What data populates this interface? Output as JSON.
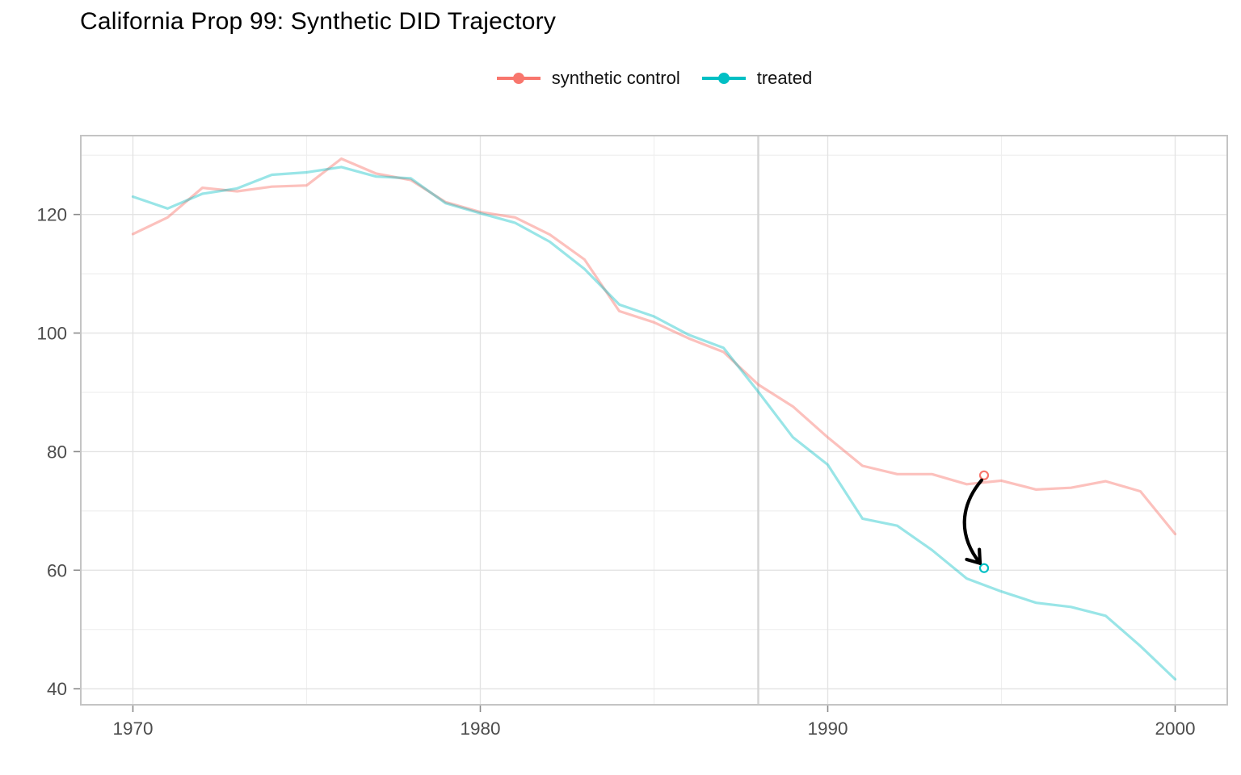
{
  "chart_data": {
    "type": "line",
    "title": "California Prop 99: Synthetic DID Trajectory",
    "xlabel": "",
    "ylabel": "",
    "legend_position": "top-center",
    "grid": true,
    "x": [
      1970,
      1971,
      1972,
      1973,
      1974,
      1975,
      1976,
      1977,
      1978,
      1979,
      1980,
      1981,
      1982,
      1983,
      1984,
      1985,
      1986,
      1987,
      1988,
      1989,
      1990,
      1991,
      1992,
      1993,
      1994,
      1995,
      1996,
      1997,
      1998,
      1999,
      2000
    ],
    "series": [
      {
        "name": "synthetic control",
        "values": [
          116.7,
          119.5,
          124.5,
          123.9,
          124.7,
          124.9,
          129.4,
          126.9,
          125.8,
          122.1,
          120.4,
          119.5,
          116.6,
          112.4,
          103.7,
          101.8,
          99.1,
          96.8,
          91.3,
          87.6,
          82.4,
          77.6,
          76.2,
          76.2,
          74.5,
          75.1,
          73.6,
          73.9,
          75.0,
          73.3,
          66.1
        ]
      },
      {
        "name": "treated",
        "values": [
          123.0,
          121.0,
          123.5,
          124.4,
          126.7,
          127.1,
          128.0,
          126.4,
          126.1,
          121.9,
          120.2,
          118.6,
          115.4,
          110.8,
          104.8,
          102.8,
          99.7,
          97.5,
          90.1,
          82.4,
          77.8,
          68.7,
          67.5,
          63.4,
          58.6,
          56.4,
          54.5,
          53.8,
          52.3,
          47.2,
          41.6
        ]
      }
    ],
    "x_ticks": [
      1970,
      1980,
      1990,
      2000
    ],
    "x_minor": [
      1975,
      1985,
      1995
    ],
    "y_ticks": [
      40,
      60,
      80,
      100,
      120
    ],
    "y_minor": [
      50,
      70,
      90,
      110,
      130
    ],
    "xlim": [
      1968.5,
      2001.5
    ],
    "ylim": [
      37.3,
      133.3
    ],
    "treatment_year": 1988,
    "effect_arrow": {
      "x": 1994.5,
      "from_value": 76.0,
      "to_value": 60.35
    },
    "colors": {
      "synthetic_control": "#F8766D",
      "treated": "#00BFC4",
      "synthetic_control_line": "rgba(248,118,109,0.45)",
      "treated_line": "rgba(0,191,196,0.40)",
      "arrow": "#000000",
      "grid_major": "#E3E3E3",
      "grid_minor": "#EFEFEF",
      "panel_border": "#C4C4C4",
      "treatment_line": "#D5D5D5",
      "tick": "#8A8A8A",
      "tick_label": "#4D4D4D",
      "title": "#000000"
    }
  }
}
